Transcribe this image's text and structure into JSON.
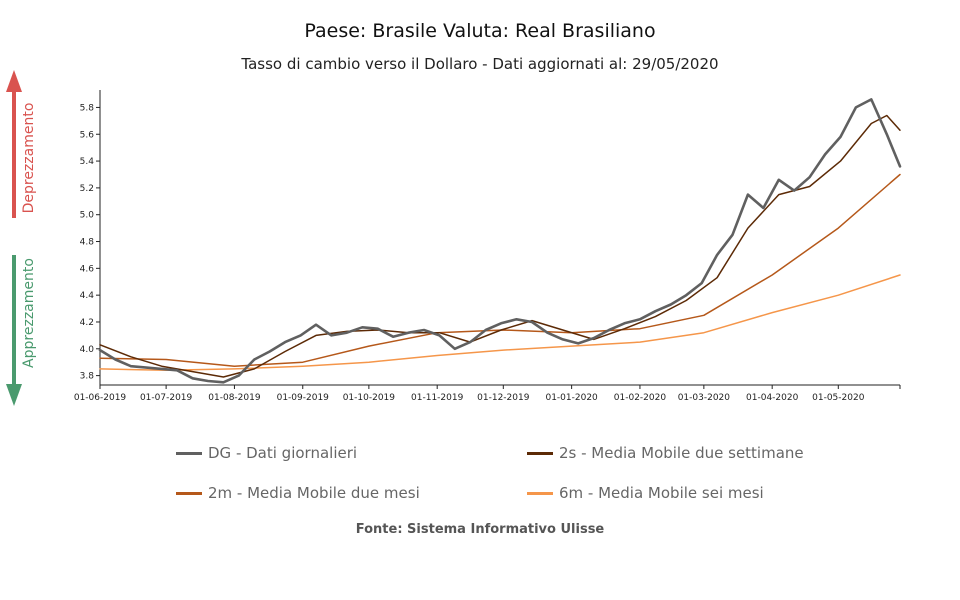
{
  "chart_data": {
    "type": "line",
    "title": "Paese: Brasile Valuta: Real Brasiliano",
    "subtitle": "Tasso di cambio verso il Dollaro - Dati aggiornati al: 29/05/2020",
    "source": "Fonte: Sistema Informativo Ulisse",
    "side_labels": {
      "up": "Deprezzamento",
      "down": "Apprezzamento"
    },
    "x_ticks": [
      "01-06-2019",
      "01-07-2019",
      "01-08-2019",
      "01-09-2019",
      "01-10-2019",
      "01-11-2019",
      "01-12-2019",
      "01-01-2020",
      "01-02-2020",
      "01-03-2020",
      "01-04-2020",
      "01-05-2020"
    ],
    "x_range": [
      "01-06-2019",
      "29-05-2020"
    ],
    "y_ticks": [
      "3.8",
      "4.0",
      "4.2",
      "4.4",
      "4.6",
      "4.8",
      "5.0",
      "5.2",
      "5.4",
      "5.6",
      "5.8"
    ],
    "ylim": [
      3.73,
      5.93
    ],
    "legend_position": "bottom",
    "colors": {
      "DG": "#606060",
      "2s": "#5c2a06",
      "2m": "#b5581a",
      "6m": "#f5964a"
    },
    "series": [
      {
        "key": "DG",
        "name": "DG - Dati giornalieri",
        "points": [
          [
            "01-06-2019",
            3.99
          ],
          [
            "08-06-2019",
            3.92
          ],
          [
            "15-06-2019",
            3.87
          ],
          [
            "22-06-2019",
            3.86
          ],
          [
            "29-06-2019",
            3.85
          ],
          [
            "06-07-2019",
            3.84
          ],
          [
            "13-07-2019",
            3.78
          ],
          [
            "20-07-2019",
            3.76
          ],
          [
            "27-07-2019",
            3.75
          ],
          [
            "03-08-2019",
            3.8
          ],
          [
            "10-08-2019",
            3.92
          ],
          [
            "17-08-2019",
            3.98
          ],
          [
            "24-08-2019",
            4.05
          ],
          [
            "31-08-2019",
            4.1
          ],
          [
            "07-09-2019",
            4.18
          ],
          [
            "14-09-2019",
            4.1
          ],
          [
            "21-09-2019",
            4.12
          ],
          [
            "28-09-2019",
            4.16
          ],
          [
            "05-10-2019",
            4.15
          ],
          [
            "12-10-2019",
            4.09
          ],
          [
            "19-10-2019",
            4.12
          ],
          [
            "26-10-2019",
            4.14
          ],
          [
            "02-11-2019",
            4.1
          ],
          [
            "09-11-2019",
            4.0
          ],
          [
            "16-11-2019",
            4.05
          ],
          [
            "23-11-2019",
            4.14
          ],
          [
            "30-11-2019",
            4.19
          ],
          [
            "07-12-2019",
            4.22
          ],
          [
            "14-12-2019",
            4.2
          ],
          [
            "21-12-2019",
            4.12
          ],
          [
            "28-12-2019",
            4.07
          ],
          [
            "04-01-2020",
            4.04
          ],
          [
            "11-01-2020",
            4.08
          ],
          [
            "18-01-2020",
            4.14
          ],
          [
            "25-01-2020",
            4.19
          ],
          [
            "01-02-2020",
            4.22
          ],
          [
            "08-02-2020",
            4.28
          ],
          [
            "15-02-2020",
            4.33
          ],
          [
            "22-02-2020",
            4.4
          ],
          [
            "29-02-2020",
            4.49
          ],
          [
            "07-03-2020",
            4.7
          ],
          [
            "14-03-2020",
            4.85
          ],
          [
            "21-03-2020",
            5.15
          ],
          [
            "28-03-2020",
            5.05
          ],
          [
            "04-04-2020",
            5.26
          ],
          [
            "11-04-2020",
            5.18
          ],
          [
            "18-04-2020",
            5.28
          ],
          [
            "25-04-2020",
            5.45
          ],
          [
            "02-05-2020",
            5.58
          ],
          [
            "09-05-2020",
            5.8
          ],
          [
            "16-05-2020",
            5.86
          ],
          [
            "23-05-2020",
            5.6
          ],
          [
            "29-05-2020",
            5.36
          ]
        ]
      },
      {
        "key": "2s",
        "name": "2s - Media Mobile due settimane",
        "points": [
          [
            "01-06-2019",
            4.03
          ],
          [
            "15-06-2019",
            3.94
          ],
          [
            "29-06-2019",
            3.87
          ],
          [
            "13-07-2019",
            3.83
          ],
          [
            "27-07-2019",
            3.79
          ],
          [
            "10-08-2019",
            3.85
          ],
          [
            "24-08-2019",
            3.98
          ],
          [
            "07-09-2019",
            4.1
          ],
          [
            "21-09-2019",
            4.13
          ],
          [
            "05-10-2019",
            4.14
          ],
          [
            "19-10-2019",
            4.12
          ],
          [
            "02-11-2019",
            4.12
          ],
          [
            "16-11-2019",
            4.05
          ],
          [
            "30-11-2019",
            4.14
          ],
          [
            "14-12-2019",
            4.21
          ],
          [
            "28-12-2019",
            4.14
          ],
          [
            "11-01-2020",
            4.07
          ],
          [
            "25-01-2020",
            4.15
          ],
          [
            "08-02-2020",
            4.24
          ],
          [
            "22-02-2020",
            4.36
          ],
          [
            "07-03-2020",
            4.53
          ],
          [
            "21-03-2020",
            4.9
          ],
          [
            "04-04-2020",
            5.15
          ],
          [
            "18-04-2020",
            5.21
          ],
          [
            "02-05-2020",
            5.4
          ],
          [
            "16-05-2020",
            5.68
          ],
          [
            "23-05-2020",
            5.74
          ],
          [
            "29-05-2020",
            5.63
          ]
        ]
      },
      {
        "key": "2m",
        "name": "2m - Media Mobile due mesi",
        "points": [
          [
            "01-06-2019",
            3.93
          ],
          [
            "01-07-2019",
            3.92
          ],
          [
            "01-08-2019",
            3.87
          ],
          [
            "01-09-2019",
            3.9
          ],
          [
            "01-10-2019",
            4.02
          ],
          [
            "01-11-2019",
            4.12
          ],
          [
            "01-12-2019",
            4.14
          ],
          [
            "01-01-2020",
            4.12
          ],
          [
            "01-02-2020",
            4.15
          ],
          [
            "01-03-2020",
            4.25
          ],
          [
            "01-04-2020",
            4.55
          ],
          [
            "01-05-2020",
            4.9
          ],
          [
            "29-05-2020",
            5.3
          ]
        ]
      },
      {
        "key": "6m",
        "name": "6m - Media Mobile sei mesi",
        "points": [
          [
            "01-06-2019",
            3.85
          ],
          [
            "01-07-2019",
            3.84
          ],
          [
            "01-08-2019",
            3.85
          ],
          [
            "01-09-2019",
            3.87
          ],
          [
            "01-10-2019",
            3.9
          ],
          [
            "01-11-2019",
            3.95
          ],
          [
            "01-12-2019",
            3.99
          ],
          [
            "01-01-2020",
            4.02
          ],
          [
            "01-02-2020",
            4.05
          ],
          [
            "01-03-2020",
            4.12
          ],
          [
            "01-04-2020",
            4.27
          ],
          [
            "01-05-2020",
            4.4
          ],
          [
            "29-05-2020",
            4.55
          ]
        ]
      }
    ]
  }
}
